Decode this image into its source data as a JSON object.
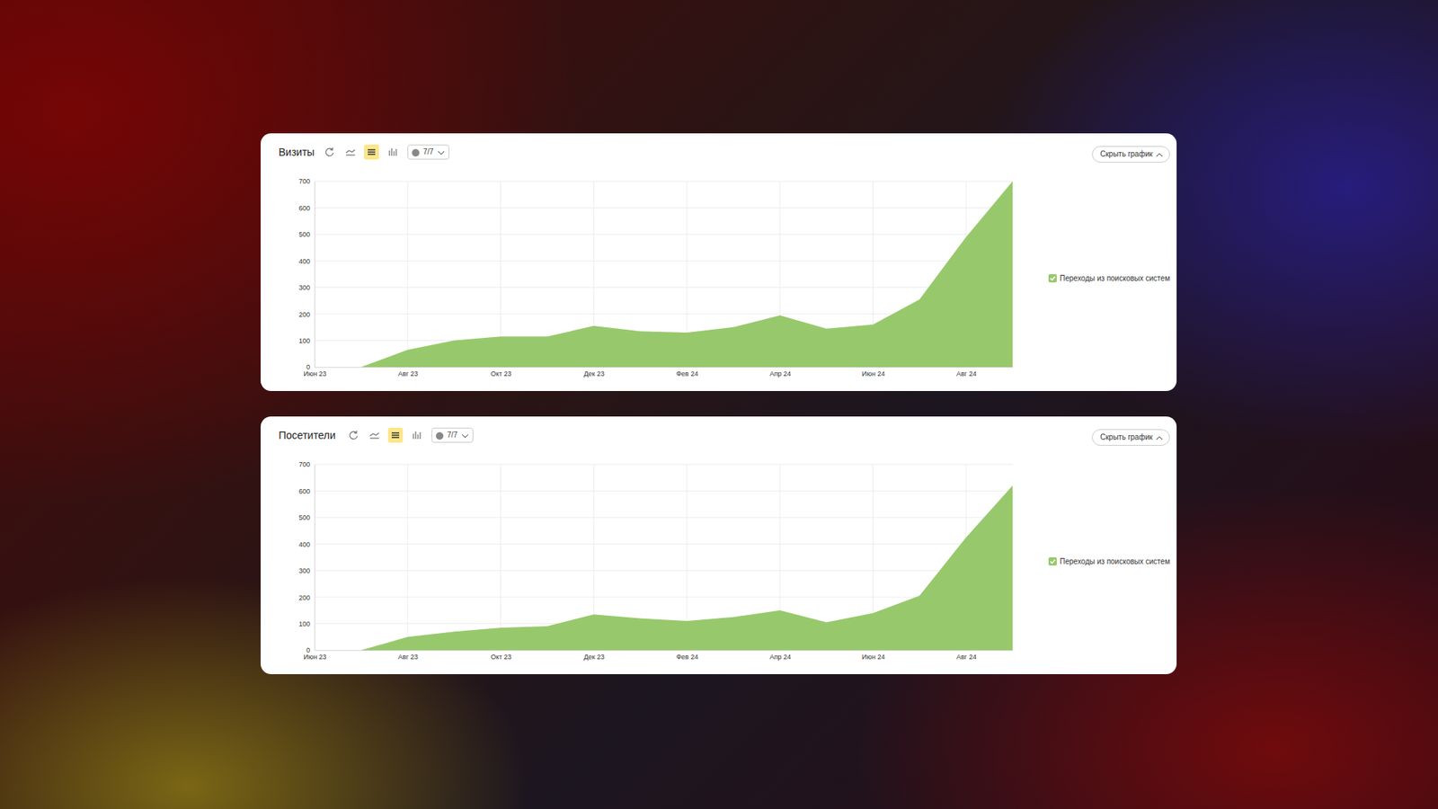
{
  "chart_data": [
    {
      "type": "area",
      "title": "Визиты",
      "controls": [
        "7/7",
        "Скрыть график"
      ],
      "categories": [
        "Июн 23",
        null,
        "Авг 23",
        null,
        "Окт 23",
        null,
        "Дек 23",
        null,
        "Фев 24",
        null,
        "Апр 24",
        null,
        "Июн 24",
        null,
        "Авг 24",
        null
      ],
      "series": [
        {
          "name": "Переходы из поисковых систем",
          "color": "#97c96c",
          "values": [
            0,
            0,
            65,
            100,
            115,
            115,
            155,
            135,
            130,
            150,
            195,
            145,
            160,
            255,
            490,
            700
          ]
        }
      ],
      "ylim": [
        0,
        700
      ],
      "yticks": [
        0,
        100,
        200,
        300,
        400,
        500,
        600,
        700
      ],
      "grid": true,
      "legend": "right"
    },
    {
      "type": "area",
      "title": "Посетители",
      "controls": [
        "7/7",
        "Скрыть график"
      ],
      "categories": [
        "Июн 23",
        null,
        "Авг 23",
        null,
        "Окт 23",
        null,
        "Дек 23",
        null,
        "Фев 24",
        null,
        "Апр 24",
        null,
        "Июн 24",
        null,
        "Авг 24",
        null
      ],
      "series": [
        {
          "name": "Переходы из поисковых систем",
          "color": "#97c96c",
          "values": [
            0,
            0,
            50,
            70,
            85,
            90,
            135,
            120,
            110,
            125,
            150,
            105,
            140,
            205,
            425,
            620
          ]
        }
      ],
      "ylim": [
        0,
        700
      ],
      "yticks": [
        0,
        100,
        200,
        300,
        400,
        500,
        600,
        700
      ],
      "grid": true,
      "legend": "right"
    }
  ]
}
